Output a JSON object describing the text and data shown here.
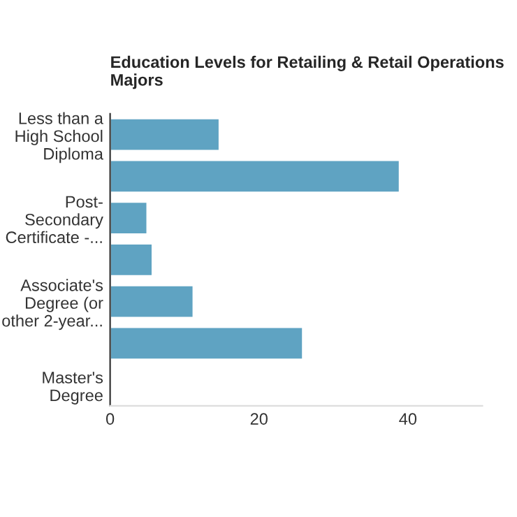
{
  "chart_data": {
    "type": "bar",
    "orientation": "horizontal",
    "title": "Education Levels for Retailing & Retail Operations Majors",
    "categories": [
      "Less than a\nHigh School\nDiploma",
      null,
      "Post-\nSecondary\nCertificate -...",
      null,
      "Associate's\nDegree (or\nother 2-year...",
      null,
      "Master's\nDegree"
    ],
    "values": [
      14.7,
      38.9,
      5.0,
      5.7,
      11.2,
      25.9,
      0.2
    ],
    "color": "#5fa3c2",
    "xlim": [
      0,
      50
    ],
    "xticks": [
      0,
      20,
      40
    ]
  }
}
